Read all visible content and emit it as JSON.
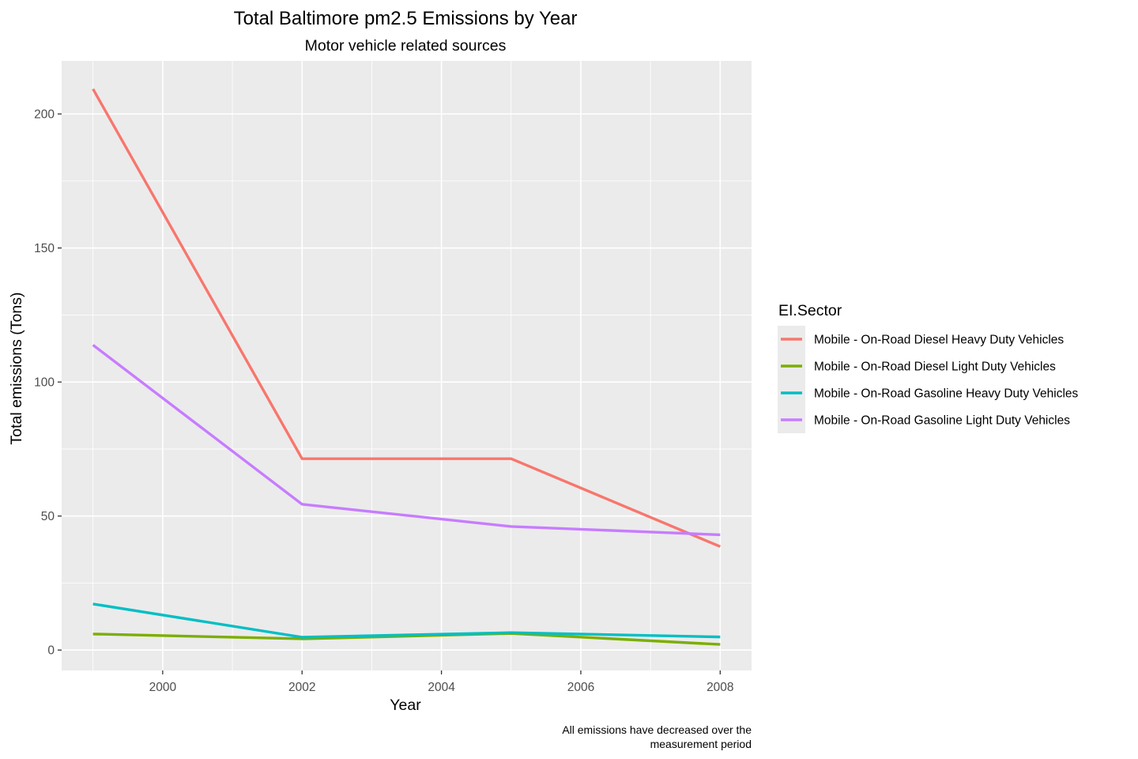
{
  "chart_data": {
    "type": "line",
    "title": "Total Baltimore pm2.5 Emissions by Year",
    "subtitle": "Motor vehicle related sources",
    "xlabel": "Year",
    "ylabel": "Total emissions (Tons)",
    "caption_lines": [
      "All emissions have decreased over the",
      "measurement period"
    ],
    "x": [
      1999,
      2002,
      2005,
      2008
    ],
    "xlim": [
      1998.55,
      2008.45
    ],
    "ylim": [
      -7.6,
      219.8
    ],
    "x_ticks": [
      2000,
      2002,
      2004,
      2006,
      2008
    ],
    "x_tick_labels": [
      "2000",
      "2002",
      "2004",
      "2006",
      "2008"
    ],
    "x_minor_ticks": [
      1999,
      2001,
      2003,
      2005,
      2007
    ],
    "y_ticks": [
      0,
      50,
      100,
      150,
      200
    ],
    "y_tick_labels": [
      "0",
      "50",
      "100",
      "150",
      "200"
    ],
    "y_minor_ticks": [
      25,
      75,
      125,
      175
    ],
    "grid": true,
    "legend": {
      "title": "EI.Sector",
      "position": "right"
    },
    "series": [
      {
        "name": "Mobile - On-Road Diesel Heavy Duty Vehicles",
        "color": "#F8766D",
        "values": [
          209.3,
          71.4,
          71.4,
          38.6
        ]
      },
      {
        "name": "Mobile - On-Road Diesel Light Duty Vehicles",
        "color": "#7CAE00",
        "values": [
          6.0,
          4.2,
          6.2,
          2.1
        ]
      },
      {
        "name": "Mobile - On-Road Gasoline Heavy Duty Vehicles",
        "color": "#00BFC4",
        "values": [
          17.2,
          4.8,
          6.5,
          4.9
        ]
      },
      {
        "name": "Mobile - On-Road Gasoline Light Duty Vehicles",
        "color": "#C77CFF",
        "values": [
          113.8,
          54.4,
          46.1,
          43.0
        ]
      }
    ],
    "colors": {
      "panel_background": "#EBEBEB",
      "grid_line": "#FFFFFF",
      "tick_label": "#4D4D4D",
      "tick_mark": "#333333",
      "legend_key_background": "#EBEBEB"
    }
  }
}
